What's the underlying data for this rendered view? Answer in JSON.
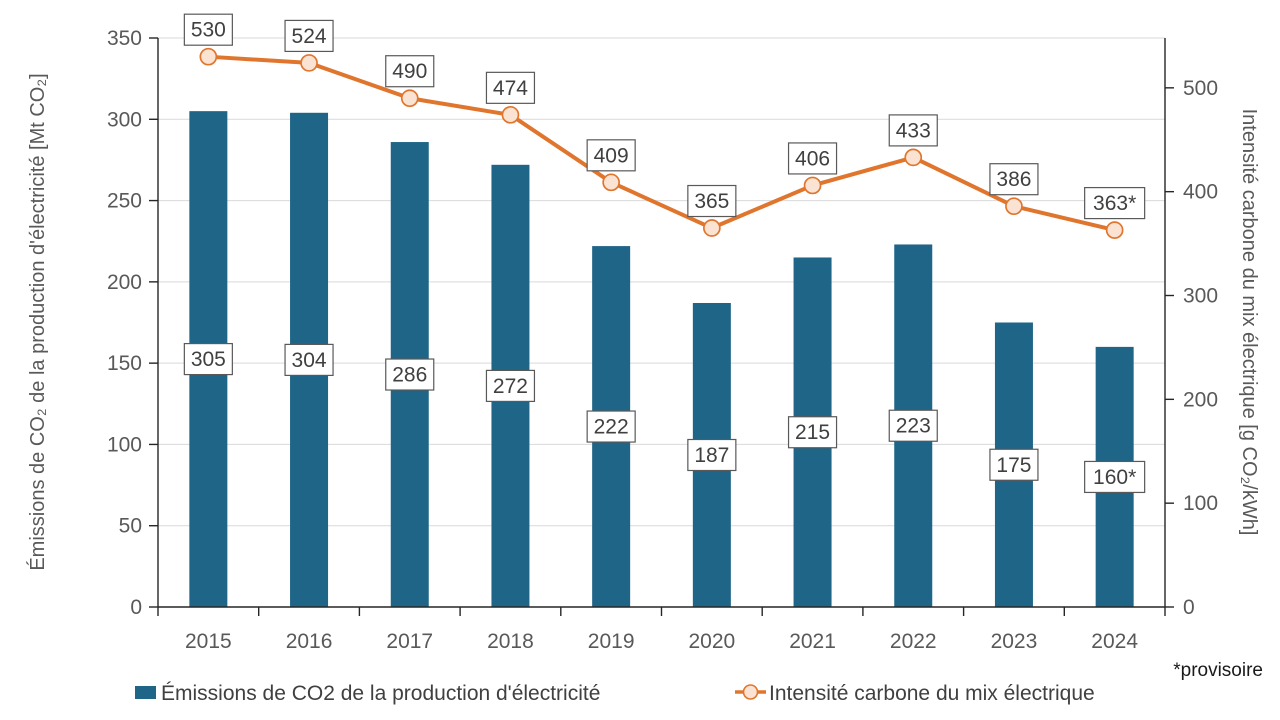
{
  "chart_data": {
    "type": "combo-bar-line",
    "categories": [
      "2015",
      "2016",
      "2017",
      "2018",
      "2019",
      "2020",
      "2021",
      "2022",
      "2023",
      "2024"
    ],
    "series": [
      {
        "name": "Émissions de CO2 de la production d'électricité",
        "type": "bar",
        "axis": "left",
        "values": [
          305,
          304,
          286,
          272,
          222,
          187,
          215,
          223,
          175,
          160
        ],
        "data_labels": [
          "305",
          "304",
          "286",
          "272",
          "222",
          "187",
          "215",
          "223",
          "175",
          "160*"
        ],
        "color": "#1F6587"
      },
      {
        "name": "Intensité carbone du mix électrique",
        "type": "line",
        "axis": "right",
        "values": [
          530,
          524,
          490,
          474,
          409,
          365,
          406,
          433,
          386,
          363
        ],
        "data_labels": [
          "530",
          "524",
          "490",
          "474",
          "409",
          "365",
          "406",
          "433",
          "386",
          "363*"
        ],
        "color": "#E0762E",
        "marker_fill": "#FBE3D3"
      }
    ],
    "y_left": {
      "title": "Émissions de CO₂ de la production d'électricité [Mt CO₂]",
      "min": 0,
      "max": 350,
      "tick_step": 50,
      "ticks": [
        "0",
        "50",
        "100",
        "150",
        "200",
        "250",
        "300",
        "350"
      ]
    },
    "y_right": {
      "title": "Intensité carbone du mix électrique [g CO₂/kWh]",
      "min": 0,
      "max": 548,
      "tick_step": 100,
      "ticks": [
        "0",
        "100",
        "200",
        "300",
        "400",
        "500"
      ]
    },
    "grid": "horizontal-50-step-left-axis",
    "legend_position": "bottom"
  },
  "footnote": "*provisoire",
  "colors": {
    "bar": "#1F6587",
    "line": "#E0762E",
    "marker_fill": "#FBE3D3",
    "gridline": "#D9D9D9",
    "axis_line": "#262626",
    "tick_label": "#595959",
    "data_label_text": "#404040",
    "data_label_border": "#595959",
    "legend_text": "#404040",
    "footnote_text": "#1A1A1A",
    "background": "#FFFFFF"
  }
}
